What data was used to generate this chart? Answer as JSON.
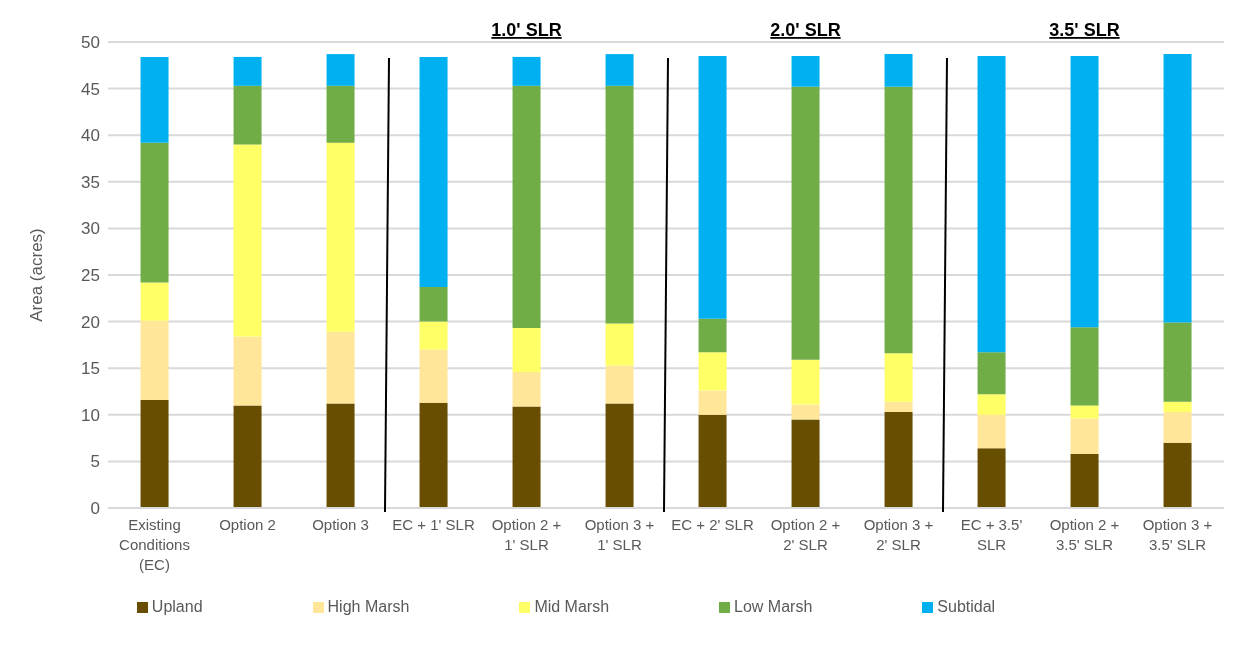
{
  "chart_data": {
    "type": "bar",
    "stacked": true,
    "ylabel": "Area (acres)",
    "categories": [
      "Existing Conditions (EC)",
      "Option 2",
      "Option 3",
      "EC + 1' SLR",
      "Option 2 + 1' SLR",
      "Option 3 + 1' SLR",
      "EC + 2' SLR",
      "Option 2 + 2' SLR",
      "Option 3 + 2' SLR",
      "EC + 3.5' SLR",
      "Option 2 + 3.5' SLR",
      "Option 3 + 3.5' SLR"
    ],
    "series": [
      {
        "name": "Upland",
        "color": "#674e00",
        "values": [
          11.6,
          11.0,
          11.2,
          11.3,
          10.9,
          11.2,
          10.0,
          9.5,
          10.3,
          6.4,
          5.8,
          7.0
        ]
      },
      {
        "name": "High Marsh",
        "color": "#ffe699",
        "values": [
          8.5,
          7.4,
          7.7,
          5.7,
          3.7,
          4.1,
          2.6,
          1.6,
          1.1,
          3.6,
          3.8,
          3.3
        ]
      },
      {
        "name": "Mid Marsh",
        "color": "#ffff66",
        "values": [
          4.1,
          20.6,
          20.3,
          3.0,
          4.7,
          4.5,
          4.1,
          4.8,
          5.2,
          2.2,
          1.4,
          1.1
        ]
      },
      {
        "name": "Low Marsh",
        "color": "#70ad47",
        "values": [
          15.0,
          6.3,
          6.1,
          3.7,
          26.0,
          25.5,
          3.6,
          29.3,
          28.6,
          4.5,
          8.4,
          8.5
        ]
      },
      {
        "name": "Subtidal",
        "color": "#00b0f0",
        "values": [
          9.2,
          3.1,
          3.4,
          24.7,
          3.1,
          3.4,
          28.2,
          3.3,
          3.5,
          31.8,
          29.1,
          28.8
        ]
      }
    ],
    "ylim": [
      0,
      50
    ],
    "yticks": [
      0,
      5,
      10,
      15,
      20,
      25,
      30,
      35,
      40,
      45,
      50
    ],
    "grid": "y",
    "legend": "bottom",
    "annotations": [
      "1.0' SLR",
      "2.0' SLR",
      "3.5' SLR"
    ]
  }
}
